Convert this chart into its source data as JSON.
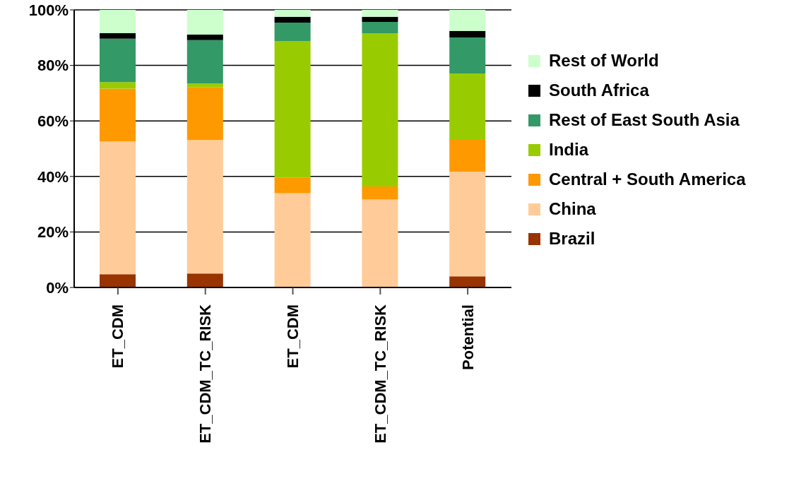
{
  "chart_data": {
    "type": "bar",
    "stacked": true,
    "categories": [
      "ET_CDM",
      "ET_CDM_TC_RISK",
      "ET_CDM",
      "ET_CDM_TC_RISK",
      "Potential"
    ],
    "series": [
      {
        "name": "Brazil",
        "color": "#993300",
        "values": [
          4.8,
          5.0,
          0,
          0,
          4.0
        ]
      },
      {
        "name": "China",
        "color": "#ffcc99",
        "values": [
          47.8,
          48.1,
          34.0,
          31.7,
          37.7
        ]
      },
      {
        "name": "Central + South America",
        "color": "#ff9900",
        "values": [
          19.0,
          19.1,
          5.6,
          4.7,
          11.5
        ]
      },
      {
        "name": "India",
        "color": "#99cc00",
        "values": [
          2.4,
          1.3,
          49.2,
          55.2,
          23.9
        ]
      },
      {
        "name": "Rest of East South Asia",
        "color": "#339966",
        "values": [
          15.6,
          15.6,
          6.6,
          4.1,
          13.0
        ]
      },
      {
        "name": "South Africa",
        "color": "#000000",
        "values": [
          2.0,
          2.0,
          2.1,
          1.8,
          2.3
        ]
      },
      {
        "name": "Rest of World",
        "color": "#ccffcc",
        "values": [
          8.4,
          8.9,
          2.5,
          2.5,
          7.6
        ]
      }
    ],
    "ylim": [
      0,
      100
    ],
    "yticks": [
      {
        "value": 0,
        "label": "0%"
      },
      {
        "value": 20,
        "label": "20%"
      },
      {
        "value": 40,
        "label": "40%"
      },
      {
        "value": 60,
        "label": "60%"
      },
      {
        "value": 80,
        "label": "80%"
      },
      {
        "value": 100,
        "label": "100%"
      }
    ],
    "grid": "y",
    "legend": "right"
  }
}
